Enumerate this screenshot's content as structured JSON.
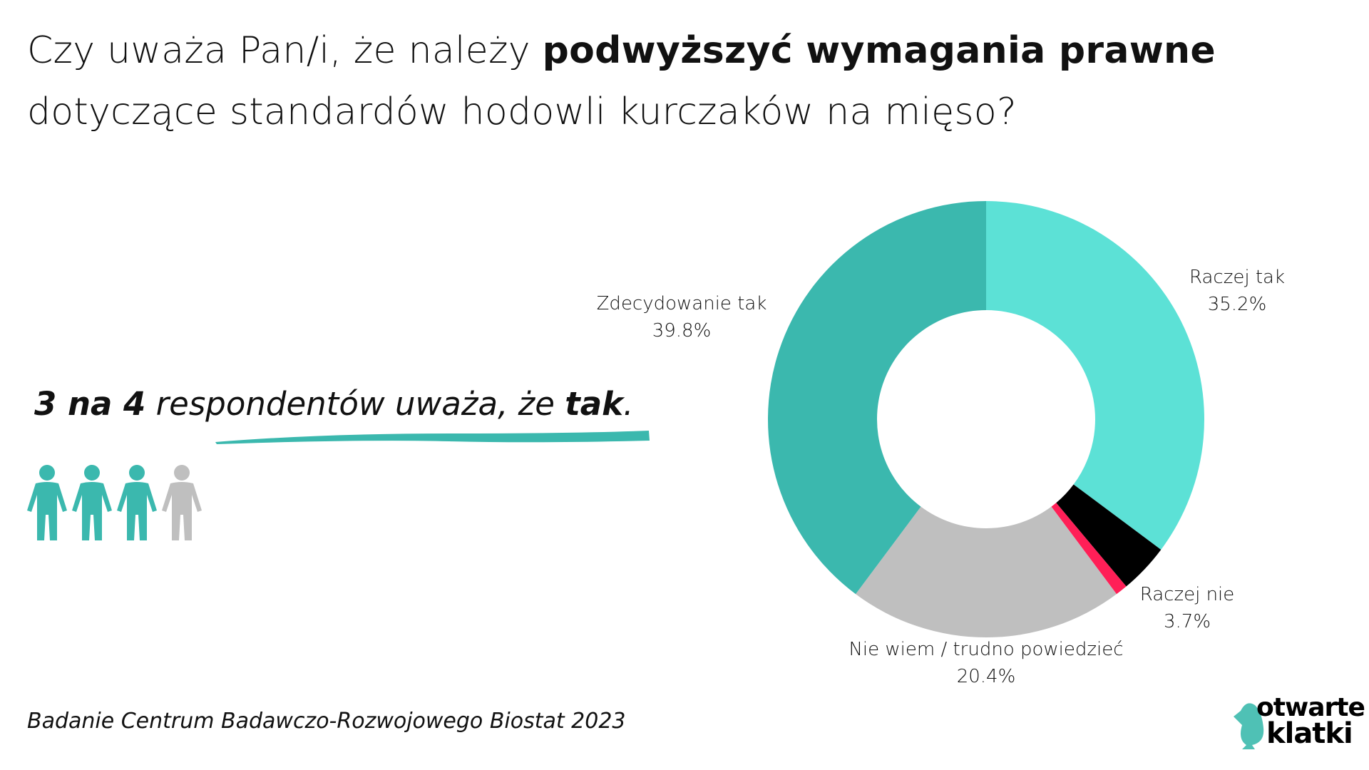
{
  "title": {
    "part1": "Czy uważa Pan/i, że należy ",
    "bold": "podwyższyć wymagania prawne",
    "line2": "dotyczące standardów hodowli kurczaków na mięso?"
  },
  "headline": {
    "bold1": "3 na 4",
    "middle": " respondentów uważa, że ",
    "bold2": "tak",
    "end": "."
  },
  "people": {
    "total": 4,
    "highlighted": 3,
    "colors": {
      "on": "#3bb8ae",
      "off": "#bfbfbf"
    }
  },
  "footer": "Badanie Centrum Badawczo-Rozwojowego Biostat 2023",
  "logo": {
    "line1": "otwarte",
    "line2": "klatki",
    "color": "#4fc1b5"
  },
  "chart_data": {
    "type": "pie",
    "donut": true,
    "start": "top, clockwise",
    "slices": [
      {
        "label": "Raczej tak",
        "value": 35.2,
        "value_label": "35.2%",
        "color": "#5ce1d6"
      },
      {
        "label": "Raczej nie",
        "value": 3.7,
        "value_label": "3.7%",
        "color": "#000000"
      },
      {
        "label": "",
        "value": 0.9,
        "value_label": "",
        "color": "#ff1f57"
      },
      {
        "label": "Nie wiem / trudno powiedzieć",
        "value": 20.4,
        "value_label": "20.4%",
        "color": "#bfbfbf"
      },
      {
        "label": "Zdecydowanie tak",
        "value": 39.8,
        "value_label": "39.8%",
        "color": "#3bb8ae"
      }
    ]
  }
}
